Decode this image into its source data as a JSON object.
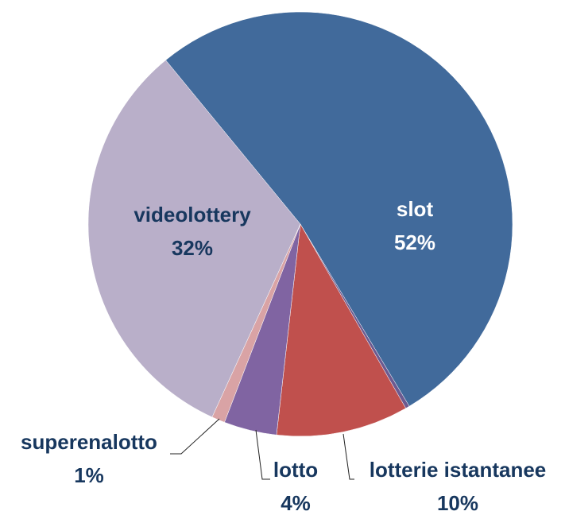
{
  "chart_data": {
    "type": "pie",
    "categories": [
      "slot",
      null,
      "lotterie istantanee",
      "lotto",
      "superenalotto",
      "videolottery"
    ],
    "values": [
      52,
      0.3,
      10,
      4,
      1,
      32
    ],
    "value_labels": [
      "52%",
      null,
      "10%",
      "4%",
      "1%",
      "32%"
    ],
    "colors": [
      "#416a9b",
      "#6c5a90",
      "#c0504d",
      "#8064a2",
      "#d9a3a5",
      "#b9afc9"
    ]
  }
}
